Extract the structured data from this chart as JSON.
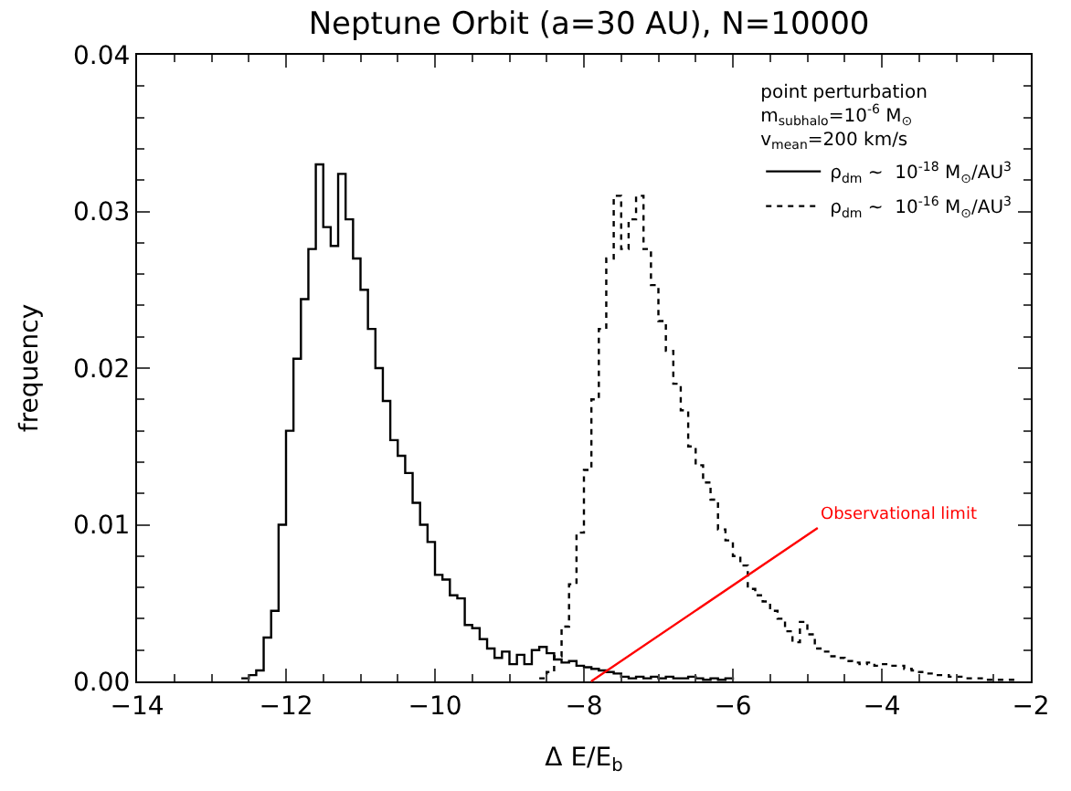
{
  "chart_data": {
    "type": "step",
    "title": "Neptune Orbit (a=30 AU), N=10000",
    "xlabel": "Δ E/E$_{b}$",
    "ylabel": "frequency",
    "legend_title": "point perturbation\nm$_{subhalo}$=10$^{-6}$ M$_{⊙}$\nv$_{mean}$=200 km/s",
    "legend": "top right",
    "xlim": [
      -14,
      -2
    ],
    "xticks": [
      -14,
      -12,
      -10,
      -8,
      -6,
      -4,
      -2
    ],
    "ylim": [
      0,
      0.04
    ],
    "yticks": [
      {
        "value": 0,
        "label": "0.00"
      },
      0.01,
      0.02,
      0.03,
      0.04
    ],
    "annotations": [
      "Observational limit"
    ],
    "series": [
      {
        "name": "ρ$_{dm}$ ~  10$^{-18}$ M$_{⊙}$/AU$^{3}$",
        "color": "#000000",
        "line_style": "solid",
        "x": [
          -12.6,
          -12.5,
          -12.4,
          -12.3,
          -12.2,
          -12.1,
          -12.0,
          -11.9,
          -11.8,
          -11.7,
          -11.6,
          -11.5,
          -11.4,
          -11.3,
          -11.2,
          -11.1,
          -11.0,
          -10.9,
          -10.8,
          -10.7,
          -10.6,
          -10.5,
          -10.4,
          -10.3,
          -10.2,
          -10.1,
          -10.0,
          -9.9,
          -9.8,
          -9.7,
          -9.6,
          -9.5,
          -9.4,
          -9.3,
          -9.2,
          -9.1,
          -9.0,
          -8.9,
          -8.8,
          -8.7,
          -8.6,
          -8.5,
          -8.4,
          -8.3,
          -8.2,
          -8.1,
          -8.0,
          -7.9,
          -7.8,
          -7.7,
          -7.6,
          -7.5,
          -7.4,
          -7.3,
          -7.2,
          -7.1,
          -7.0,
          -6.9,
          -6.8,
          -6.7,
          -6.6,
          -6.5,
          -6.4,
          -6.3,
          -6.2,
          -6.1,
          -6.0
        ],
        "values": [
          0.0002,
          0.0004,
          0.0007,
          0.0028,
          0.0045,
          0.01,
          0.016,
          0.0206,
          0.0244,
          0.0276,
          0.033,
          0.029,
          0.0278,
          0.0324,
          0.0295,
          0.027,
          0.025,
          0.0225,
          0.02,
          0.0179,
          0.0154,
          0.0144,
          0.0133,
          0.0114,
          0.01,
          0.0089,
          0.0068,
          0.0065,
          0.0055,
          0.0053,
          0.0036,
          0.0034,
          0.0027,
          0.0021,
          0.0015,
          0.0019,
          0.0011,
          0.0017,
          0.0011,
          0.002,
          0.0022,
          0.0018,
          0.0014,
          0.0012,
          0.0013,
          0.001,
          0.0009,
          0.0008,
          0.0007,
          0.0006,
          0.0005,
          0.0003,
          0.0002,
          0.0003,
          0.0002,
          0.0003,
          0.0002,
          0.0003,
          0.0002,
          0.0002,
          0.0003,
          0.0002,
          0.0001,
          0.0002,
          0.0001,
          0.0002,
          0.0001
        ]
      },
      {
        "name": "ρ$_{dm}$ ~  10$^{-16}$ M$_{⊙}$/AU$^{3}$",
        "color": "#000000",
        "line_style": "dotted",
        "x": [
          -8.6,
          -8.5,
          -8.4,
          -8.3,
          -8.2,
          -8.1,
          -8.0,
          -7.9,
          -7.8,
          -7.7,
          -7.6,
          -7.5,
          -7.4,
          -7.3,
          -7.2,
          -7.1,
          -7.0,
          -6.9,
          -6.8,
          -6.7,
          -6.6,
          -6.5,
          -6.4,
          -6.3,
          -6.2,
          -6.1,
          -6.0,
          -5.9,
          -5.8,
          -5.7,
          -5.6,
          -5.5,
          -5.4,
          -5.3,
          -5.2,
          -5.1,
          -5.0,
          -4.9,
          -4.8,
          -4.7,
          -4.6,
          -4.5,
          -4.4,
          -4.3,
          -4.2,
          -4.1,
          -4.0,
          -3.9,
          -3.8,
          -3.7,
          -3.6,
          -3.5,
          -3.4,
          -3.3,
          -3.2,
          -3.1,
          -3.0,
          -2.9,
          -2.8,
          -2.7,
          -2.6,
          -2.5,
          -2.4,
          -2.3,
          -2.2
        ],
        "values": [
          0.0002,
          0.0006,
          0.0016,
          0.0035,
          0.0062,
          0.0095,
          0.0135,
          0.018,
          0.0225,
          0.027,
          0.031,
          0.0276,
          0.0295,
          0.031,
          0.0276,
          0.0253,
          0.023,
          0.0211,
          0.019,
          0.0173,
          0.015,
          0.0138,
          0.0127,
          0.0116,
          0.0097,
          0.009,
          0.008,
          0.0074,
          0.0059,
          0.0055,
          0.0051,
          0.0045,
          0.004,
          0.0032,
          0.0025,
          0.0038,
          0.003,
          0.0021,
          0.0019,
          0.0016,
          0.0015,
          0.0013,
          0.0012,
          0.0011,
          0.0012,
          0.001,
          0.0011,
          0.001,
          0.001,
          0.0008,
          0.0007,
          0.0006,
          0.0005,
          0.0004,
          0.0004,
          0.0003,
          0.0003,
          0.0002,
          0.0002,
          0.0002,
          0.0001,
          0.0001,
          0.0001,
          0.0001,
          0.0001
        ]
      }
    ]
  }
}
